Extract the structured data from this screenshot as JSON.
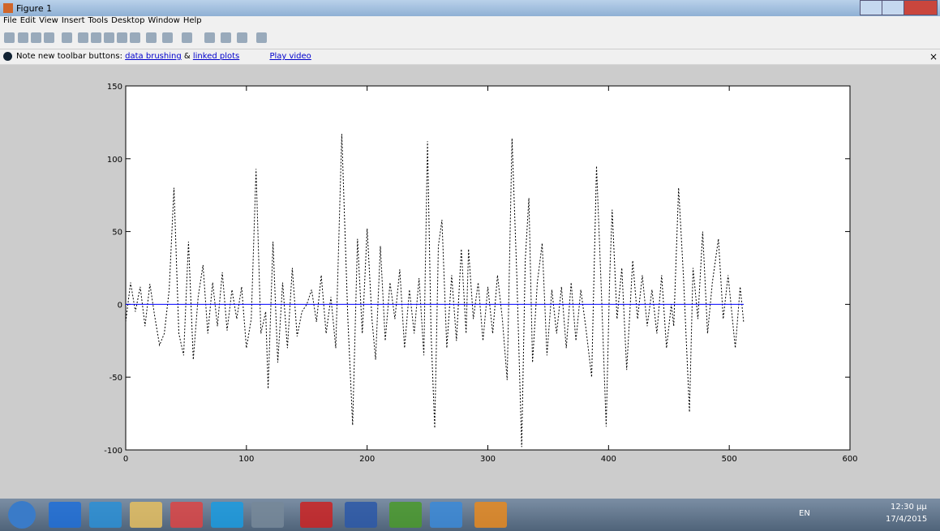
{
  "window": {
    "title": "Figure 1",
    "menu": [
      "File",
      "Edit",
      "View",
      "Insert",
      "Tools",
      "Desktop",
      "Window",
      "Help"
    ],
    "note": {
      "text": "Note new toolbar buttons:",
      "link1": "data brushing",
      "amp": "&",
      "link2": "linked plots",
      "video": "Play video"
    },
    "taskbar": {
      "lang": "EN",
      "time": "12:30 μμ",
      "date": "17/4/2015"
    }
  },
  "chart_data": {
    "type": "line",
    "series": [
      {
        "color": "#000000",
        "style": "dotted",
        "x": [
          0,
          4,
          8,
          12,
          16,
          20,
          24,
          28,
          32,
          36,
          40,
          44,
          48,
          52,
          56,
          60,
          64,
          68,
          72,
          76,
          80,
          84,
          88,
          92,
          96,
          100,
          104,
          108,
          112,
          116,
          118,
          122,
          126,
          130,
          134,
          138,
          142,
          146,
          150,
          154,
          158,
          162,
          166,
          170,
          174,
          179,
          184,
          188,
          192,
          196,
          200,
          204,
          207,
          211,
          215,
          219,
          223,
          227,
          231,
          235,
          239,
          243,
          247,
          250,
          253,
          256,
          259,
          262,
          266,
          270,
          274,
          278,
          282,
          284,
          288,
          292,
          296,
          300,
          304,
          308,
          312,
          316,
          320,
          324,
          328,
          331,
          334,
          337,
          341,
          345,
          349,
          353,
          357,
          361,
          365,
          369,
          373,
          377,
          381,
          386,
          390,
          394,
          398,
          401,
          403,
          407,
          411,
          415,
          420,
          424,
          428,
          432,
          436,
          440,
          444,
          448,
          452,
          454,
          458,
          462,
          467,
          470,
          474,
          478,
          482,
          486,
          491,
          495,
          499,
          505,
          509,
          512
        ],
        "values": [
          -12,
          15,
          -5,
          12,
          -15,
          14,
          -8,
          -28,
          -20,
          10,
          80,
          -20,
          -35,
          43,
          -38,
          5,
          27,
          -20,
          15,
          -15,
          22,
          -18,
          10,
          -10,
          12,
          -30,
          -10,
          93,
          -20,
          -5,
          -58,
          43,
          -40,
          15,
          -30,
          25,
          -22,
          -5,
          0,
          10,
          -12,
          20,
          -20,
          5,
          -30,
          117,
          -10,
          -83,
          45,
          -20,
          52,
          -10,
          -38,
          40,
          -25,
          15,
          -10,
          24,
          -30,
          10,
          -20,
          18,
          -35,
          112,
          -20,
          -85,
          40,
          58,
          -30,
          20,
          -25,
          38,
          -20,
          38,
          -10,
          15,
          -25,
          12,
          -20,
          20,
          -10,
          -52,
          114,
          20,
          -98,
          30,
          73,
          -40,
          15,
          42,
          -35,
          10,
          -20,
          12,
          -30,
          15,
          -25,
          10,
          -15,
          -50,
          95,
          10,
          -84,
          20,
          65,
          -10,
          25,
          -45,
          30,
          -10,
          20,
          -15,
          10,
          -20,
          20,
          -30,
          0,
          -15,
          80,
          20,
          -74,
          25,
          -10,
          50,
          -20,
          15,
          45,
          -10,
          20,
          -30,
          12,
          -13
        ]
      },
      {
        "color": "#0000ff",
        "style": "solid",
        "x": [
          0,
          512
        ],
        "values": [
          0,
          0
        ]
      }
    ],
    "xlim": [
      0,
      600
    ],
    "xticks": [
      0,
      100,
      200,
      300,
      400,
      500,
      600
    ],
    "ylim": [
      -100,
      150
    ],
    "yticks": [
      -100,
      -50,
      0,
      50,
      100,
      150
    ]
  }
}
